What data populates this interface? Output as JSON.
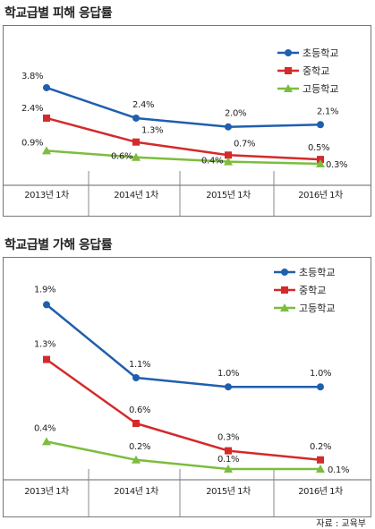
{
  "chart_data": [
    {
      "type": "line",
      "title": "학교급별 피해 응답률",
      "categories": [
        "2013년 1차",
        "2014년 1차",
        "2015년 1차",
        "2016년 1차"
      ],
      "series": [
        {
          "name": "초등학교",
          "values": [
            3.8,
            2.4,
            2.0,
            2.1
          ],
          "labels": [
            "3.8%",
            "2.4%",
            "2.0%",
            "2.1%"
          ],
          "color": "#1f5fae",
          "marker": "circle"
        },
        {
          "name": "중학교",
          "values": [
            2.4,
            1.3,
            0.7,
            0.5
          ],
          "labels": [
            "2.4%",
            "1.3%",
            "0.7%",
            "0.5%"
          ],
          "color": "#d42a2a",
          "marker": "square"
        },
        {
          "name": "고등학교",
          "values": [
            0.9,
            0.6,
            0.4,
            0.3
          ],
          "labels": [
            "0.9%",
            "0.6%",
            "0.4%",
            "0.3%"
          ],
          "color": "#7cbd3e",
          "marker": "triangle"
        }
      ],
      "legend": "top-right",
      "grid": false
    },
    {
      "type": "line",
      "title": "학교급별 가해 응답률",
      "categories": [
        "2013년 1차",
        "2014년 1차",
        "2015년 1차",
        "2016년 1차"
      ],
      "series": [
        {
          "name": "초등학교",
          "values": [
            1.9,
            1.1,
            1.0,
            1.0
          ],
          "labels": [
            "1.9%",
            "1.1%",
            "1.0%",
            "1.0%"
          ],
          "color": "#1f5fae",
          "marker": "circle"
        },
        {
          "name": "중학교",
          "values": [
            1.3,
            0.6,
            0.3,
            0.2
          ],
          "labels": [
            "1.3%",
            "0.6%",
            "0.3%",
            "0.2%"
          ],
          "color": "#d42a2a",
          "marker": "square"
        },
        {
          "name": "고등학교",
          "values": [
            0.4,
            0.2,
            0.1,
            0.1
          ],
          "labels": [
            "0.4%",
            "0.2%",
            "0.1%",
            "0.1%"
          ],
          "color": "#7cbd3e",
          "marker": "triangle"
        }
      ],
      "legend": "top-right",
      "grid": false
    }
  ],
  "source": "자료 : 교육부"
}
